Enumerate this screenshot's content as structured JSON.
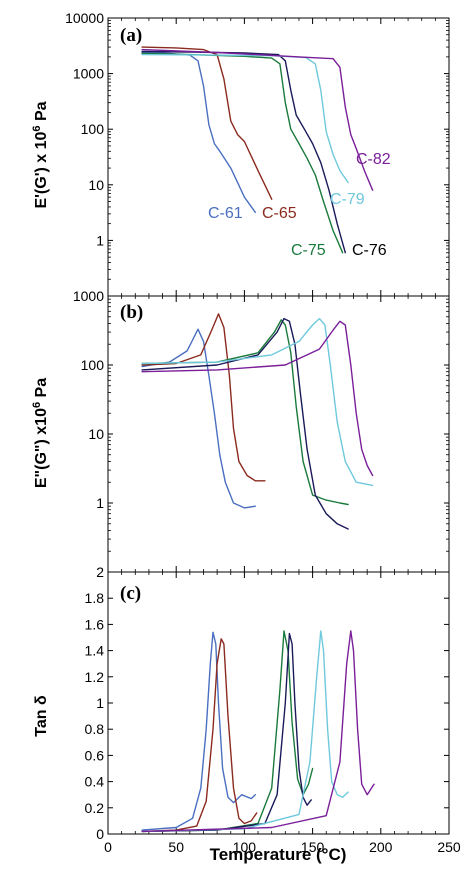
{
  "chart_data": [
    {
      "panel": "(a)",
      "type": "line",
      "ylabel": "E'(G') x 10⁶ Pa",
      "yscale": "log",
      "xlim": [
        0,
        250
      ],
      "ylim": [
        0.1,
        10000
      ],
      "yticks": [
        0.1,
        1,
        10,
        100,
        1000,
        10000
      ],
      "ytick_labels": [
        "",
        "1",
        "10",
        "100",
        "1000",
        "10000"
      ],
      "series": [
        {
          "name": "C-61",
          "color": "#4a6fc0",
          "x": [
            25,
            45,
            60,
            66,
            70,
            74,
            78,
            82,
            90,
            100,
            108
          ],
          "y": [
            2400,
            2300,
            2150,
            1700,
            600,
            120,
            55,
            40,
            20,
            6,
            3.2
          ]
        },
        {
          "name": "C-65",
          "color": "#8b2a1e",
          "x": [
            25,
            50,
            70,
            80,
            85,
            90,
            95,
            100,
            110,
            120
          ],
          "y": [
            3000,
            2900,
            2700,
            2200,
            800,
            140,
            80,
            60,
            18,
            5.5
          ]
        },
        {
          "name": "C-75",
          "color": "#1a7a3c",
          "x": [
            25,
            60,
            100,
            120,
            126,
            130,
            134,
            140,
            146,
            152,
            158,
            165,
            172
          ],
          "y": [
            2300,
            2200,
            2050,
            1900,
            1500,
            300,
            100,
            55,
            30,
            15,
            5,
            1.5,
            0.6
          ]
        },
        {
          "name": "C-76",
          "color": "#1a1a5a",
          "x": [
            25,
            60,
            100,
            125,
            130,
            134,
            138,
            144,
            150,
            156,
            162,
            168,
            174
          ],
          "y": [
            2500,
            2450,
            2350,
            2200,
            1700,
            500,
            180,
            100,
            55,
            25,
            8,
            2,
            0.6
          ]
        },
        {
          "name": "C-79",
          "color": "#6ec9dc",
          "x": [
            25,
            80,
            120,
            145,
            152,
            156,
            160,
            165,
            170,
            176
          ],
          "y": [
            2200,
            2150,
            2100,
            1950,
            1500,
            500,
            90,
            35,
            18,
            11
          ]
        },
        {
          "name": "C-82",
          "color": "#7a1e9a",
          "x": [
            25,
            80,
            140,
            165,
            170,
            174,
            178,
            182,
            188,
            194
          ],
          "y": [
            2700,
            2400,
            2000,
            1850,
            1300,
            250,
            80,
            45,
            18,
            8
          ]
        }
      ]
    },
    {
      "panel": "(b)",
      "type": "line",
      "ylabel": "E\"(G\") x10⁶ Pa",
      "yscale": "log",
      "xlim": [
        0,
        250
      ],
      "ylim": [
        0.1,
        1000
      ],
      "yticks": [
        0.1,
        1,
        10,
        100,
        1000
      ],
      "ytick_labels": [
        "",
        "1",
        "10",
        "100",
        "1000"
      ],
      "series": [
        {
          "name": "C-61",
          "color": "#4a6fc0",
          "x": [
            25,
            45,
            58,
            66,
            70,
            74,
            78,
            82,
            86,
            92,
            100,
            108
          ],
          "y": [
            95,
            110,
            160,
            330,
            220,
            70,
            20,
            5,
            2,
            1,
            0.85,
            0.9
          ]
        },
        {
          "name": "C-65",
          "color": "#8b2a1e",
          "x": [
            25,
            50,
            68,
            76,
            81,
            85,
            89,
            92,
            96,
            102,
            108,
            115
          ],
          "y": [
            100,
            105,
            140,
            320,
            550,
            350,
            70,
            12,
            4,
            2.5,
            2.1,
            2.1
          ]
        },
        {
          "name": "C-75",
          "color": "#1a7a3c",
          "x": [
            25,
            80,
            110,
            122,
            127,
            130,
            134,
            138,
            143,
            150,
            160,
            170,
            176
          ],
          "y": [
            105,
            110,
            150,
            300,
            450,
            380,
            150,
            25,
            4,
            1.3,
            1.1,
            1.0,
            0.95
          ]
        },
        {
          "name": "C-76",
          "color": "#1a1a5a",
          "x": [
            25,
            80,
            110,
            124,
            129,
            133,
            137,
            141,
            146,
            152,
            160,
            168,
            176
          ],
          "y": [
            85,
            100,
            140,
            300,
            470,
            430,
            200,
            40,
            6,
            1.3,
            0.7,
            0.5,
            0.42
          ]
        },
        {
          "name": "C-79",
          "color": "#6ec9dc",
          "x": [
            25,
            80,
            120,
            140,
            150,
            155,
            159,
            163,
            168,
            174,
            182,
            194
          ],
          "y": [
            105,
            110,
            140,
            220,
            380,
            470,
            380,
            100,
            15,
            4,
            2,
            1.8
          ]
        },
        {
          "name": "C-82",
          "color": "#7a1e9a",
          "x": [
            25,
            80,
            130,
            155,
            165,
            170,
            174,
            178,
            182,
            186,
            190,
            194
          ],
          "y": [
            80,
            85,
            100,
            170,
            320,
            430,
            380,
            100,
            20,
            6,
            3.5,
            2.5
          ]
        }
      ]
    },
    {
      "panel": "(c)",
      "type": "line",
      "xlabel": "Temperature (°C)",
      "ylabel": "Tan δ",
      "yscale": "linear",
      "xlim": [
        0,
        250
      ],
      "ylim": [
        0,
        2
      ],
      "xticks": [
        0,
        50,
        100,
        150,
        200,
        250
      ],
      "yticks": [
        0,
        0.2,
        0.4,
        0.6,
        0.8,
        1,
        1.2,
        1.4,
        1.6,
        1.8,
        2
      ],
      "ytick_labels": [
        "0",
        "0.2",
        "0.4",
        "0.6",
        "0.8",
        "1",
        "1.2",
        "1.4",
        "1.6",
        "1.8",
        "2"
      ],
      "series": [
        {
          "name": "C-61",
          "color": "#4a6fc0",
          "x": [
            25,
            50,
            62,
            68,
            72,
            75,
            77,
            79,
            81,
            84,
            88,
            92,
            98,
            105,
            108
          ],
          "y": [
            0.03,
            0.05,
            0.12,
            0.35,
            0.8,
            1.3,
            1.54,
            1.45,
            1.0,
            0.5,
            0.28,
            0.24,
            0.3,
            0.27,
            0.3
          ]
        },
        {
          "name": "C-65",
          "color": "#8b2a1e",
          "x": [
            25,
            50,
            65,
            72,
            77,
            80,
            83,
            85,
            88,
            92,
            96,
            100,
            105,
            109
          ],
          "y": [
            0.02,
            0.03,
            0.06,
            0.25,
            0.8,
            1.3,
            1.49,
            1.45,
            0.9,
            0.35,
            0.12,
            0.08,
            0.1,
            0.16
          ]
        },
        {
          "name": "C-75",
          "color": "#1a7a3c",
          "x": [
            25,
            80,
            110,
            120,
            126,
            129,
            132,
            135,
            139,
            143,
            147,
            150
          ],
          "y": [
            0.02,
            0.03,
            0.08,
            0.35,
            1.1,
            1.55,
            1.4,
            0.85,
            0.42,
            0.3,
            0.38,
            0.5
          ]
        },
        {
          "name": "C-76",
          "color": "#1a1a5a",
          "x": [
            25,
            80,
            115,
            124,
            130,
            133,
            135,
            137,
            140,
            143,
            146,
            149
          ],
          "y": [
            0.02,
            0.03,
            0.08,
            0.3,
            1.0,
            1.53,
            1.45,
            1.0,
            0.5,
            0.28,
            0.22,
            0.26
          ]
        },
        {
          "name": "C-79",
          "color": "#6ec9dc",
          "x": [
            25,
            100,
            140,
            148,
            153,
            156,
            158,
            161,
            164,
            168,
            172,
            176
          ],
          "y": [
            0.02,
            0.04,
            0.15,
            0.55,
            1.2,
            1.55,
            1.4,
            0.8,
            0.4,
            0.3,
            0.28,
            0.32
          ]
        },
        {
          "name": "C-82",
          "color": "#7a1e9a",
          "x": [
            25,
            120,
            160,
            170,
            175,
            178,
            180,
            183,
            186,
            190,
            195
          ],
          "y": [
            0.02,
            0.05,
            0.14,
            0.55,
            1.3,
            1.55,
            1.4,
            0.8,
            0.38,
            0.3,
            0.38
          ]
        }
      ]
    }
  ],
  "labels": {
    "a_c61": "C-61",
    "a_c65": "C-65",
    "a_c75": "C-75",
    "a_c76": "C-76",
    "a_c79": "C-79",
    "a_c82": "C-82",
    "x_tick_labels": [
      "0",
      "50",
      "100",
      "150",
      "200",
      "250"
    ]
  }
}
